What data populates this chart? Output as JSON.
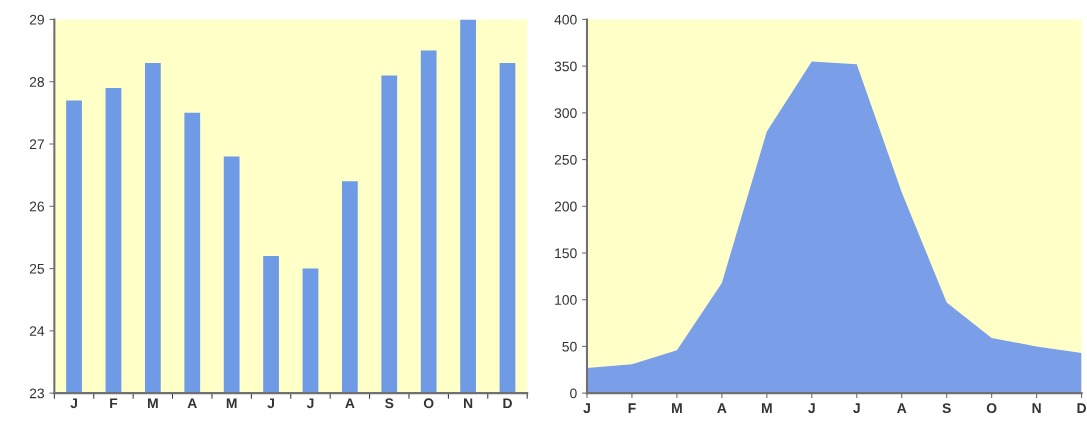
{
  "chart_data": [
    {
      "type": "bar",
      "categories": [
        "J",
        "F",
        "M",
        "A",
        "M",
        "J",
        "J",
        "A",
        "S",
        "O",
        "N",
        "D"
      ],
      "values": [
        27.7,
        27.9,
        28.3,
        27.5,
        26.8,
        25.2,
        25.0,
        26.4,
        28.1,
        28.5,
        29.0,
        28.3
      ],
      "color": "#6f9be6",
      "ylim": [
        23,
        29
      ],
      "yticks": [
        23,
        24,
        25,
        26,
        27,
        28,
        29
      ],
      "grid": false
    },
    {
      "type": "area",
      "categories": [
        "J",
        "F",
        "M",
        "A",
        "M",
        "J",
        "J",
        "A",
        "S",
        "O",
        "N",
        "D"
      ],
      "values": [
        27,
        31,
        46,
        118,
        280,
        355,
        352,
        215,
        97,
        59,
        50,
        43
      ],
      "color": "#7a9fe8",
      "ylim": [
        0,
        400
      ],
      "yticks": [
        0,
        50,
        100,
        150,
        200,
        250,
        300,
        350,
        400
      ],
      "grid": false
    }
  ]
}
